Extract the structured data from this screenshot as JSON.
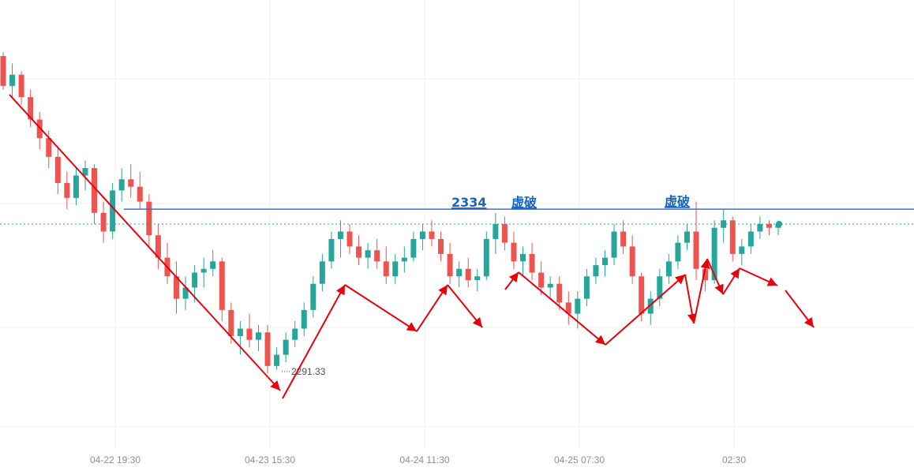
{
  "chart_data": {
    "type": "candlestick",
    "x_tick_labels": [
      "04-22 19:30",
      "04-23 15:30",
      "04-24 11:30",
      "04-25 07:30",
      "02:30"
    ],
    "y_range": [
      2270,
      2390
    ],
    "grid": true,
    "resistance_level": {
      "value": 2334,
      "label": "2334",
      "color": "#3b6fe0"
    },
    "current_price_line": {
      "value": 2330
    },
    "low_annotation": {
      "value": 2291.33,
      "label": "2291.33"
    },
    "breakout_labels": [
      "虚破",
      "虚破"
    ],
    "colors": {
      "up": "#26a69a",
      "down": "#ef5350",
      "arrows": "#e8000b",
      "text_annotation": "#1565c0",
      "current_line": "#26a69a",
      "current_dot": "#26a69a"
    },
    "candles": [
      [
        2375,
        2376,
        2366,
        2367
      ],
      [
        2367,
        2373,
        2364,
        2370
      ],
      [
        2370,
        2371,
        2362,
        2364
      ],
      [
        2364,
        2366,
        2356,
        2358
      ],
      [
        2358,
        2360,
        2350,
        2353
      ],
      [
        2353,
        2355,
        2345,
        2348
      ],
      [
        2348,
        2351,
        2338,
        2341
      ],
      [
        2341,
        2344,
        2334,
        2337
      ],
      [
        2337,
        2345,
        2335,
        2343
      ],
      [
        2343,
        2347,
        2339,
        2345
      ],
      [
        2345,
        2346,
        2330,
        2333
      ],
      [
        2333,
        2336,
        2325,
        2328
      ],
      [
        2328,
        2341,
        2326,
        2339
      ],
      [
        2339,
        2345,
        2336,
        2342
      ],
      [
        2342,
        2346,
        2337,
        2340
      ],
      [
        2340,
        2344,
        2334,
        2336
      ],
      [
        2336,
        2338,
        2324,
        2327
      ],
      [
        2327,
        2330,
        2318,
        2321
      ],
      [
        2321,
        2325,
        2314,
        2316
      ],
      [
        2316,
        2320,
        2306,
        2310
      ],
      [
        2310,
        2316,
        2307,
        2313
      ],
      [
        2313,
        2319,
        2309,
        2317
      ],
      [
        2317,
        2321,
        2313,
        2318
      ],
      [
        2318,
        2323,
        2316,
        2320
      ],
      [
        2320,
        2321,
        2304,
        2307
      ],
      [
        2307,
        2309,
        2298,
        2300
      ],
      [
        2300,
        2304,
        2295,
        2302
      ],
      [
        2302,
        2306,
        2297,
        2299
      ],
      [
        2299,
        2303,
        2296,
        2301
      ],
      [
        2301,
        2303,
        2290,
        2292
      ],
      [
        2292,
        2297,
        2291,
        2295
      ],
      [
        2295,
        2301,
        2293,
        2299
      ],
      [
        2299,
        2304,
        2297,
        2302
      ],
      [
        2302,
        2309,
        2300,
        2307
      ],
      [
        2307,
        2316,
        2305,
        2314
      ],
      [
        2314,
        2322,
        2312,
        2320
      ],
      [
        2320,
        2328,
        2318,
        2326
      ],
      [
        2326,
        2331,
        2321,
        2328
      ],
      [
        2328,
        2330,
        2322,
        2324
      ],
      [
        2324,
        2327,
        2319,
        2321
      ],
      [
        2321,
        2325,
        2318,
        2323
      ],
      [
        2323,
        2326,
        2318,
        2320
      ],
      [
        2320,
        2324,
        2314,
        2316
      ],
      [
        2316,
        2322,
        2314,
        2320
      ],
      [
        2320,
        2324,
        2317,
        2321
      ],
      [
        2321,
        2328,
        2320,
        2326
      ],
      [
        2326,
        2330,
        2323,
        2328
      ],
      [
        2328,
        2331,
        2324,
        2326
      ],
      [
        2326,
        2328,
        2320,
        2322
      ],
      [
        2322,
        2325,
        2314,
        2316
      ],
      [
        2316,
        2320,
        2313,
        2318
      ],
      [
        2318,
        2321,
        2313,
        2315
      ],
      [
        2315,
        2318,
        2312,
        2316
      ],
      [
        2316,
        2328,
        2315,
        2326
      ],
      [
        2326,
        2333,
        2322,
        2330
      ],
      [
        2330,
        2332,
        2323,
        2325
      ],
      [
        2325,
        2328,
        2318,
        2320
      ],
      [
        2320,
        2324,
        2316,
        2322
      ],
      [
        2322,
        2325,
        2315,
        2317
      ],
      [
        2317,
        2320,
        2311,
        2313
      ],
      [
        2313,
        2316,
        2310,
        2314
      ],
      [
        2314,
        2316,
        2307,
        2309
      ],
      [
        2309,
        2312,
        2303,
        2306
      ],
      [
        2306,
        2312,
        2302,
        2310
      ],
      [
        2310,
        2318,
        2308,
        2316
      ],
      [
        2316,
        2321,
        2314,
        2319
      ],
      [
        2319,
        2323,
        2316,
        2321
      ],
      [
        2321,
        2330,
        2319,
        2328
      ],
      [
        2328,
        2331,
        2322,
        2324
      ],
      [
        2324,
        2327,
        2314,
        2316
      ],
      [
        2316,
        2317,
        2304,
        2306
      ],
      [
        2306,
        2312,
        2303,
        2310
      ],
      [
        2310,
        2318,
        2308,
        2316
      ],
      [
        2316,
        2322,
        2314,
        2320
      ],
      [
        2320,
        2327,
        2318,
        2325
      ],
      [
        2325,
        2330,
        2323,
        2328
      ],
      [
        2328,
        2336,
        2315,
        2318
      ],
      [
        2318,
        2320,
        2312,
        2315
      ],
      [
        2315,
        2331,
        2314,
        2329
      ],
      [
        2329,
        2334,
        2325,
        2331
      ],
      [
        2331,
        2332,
        2320,
        2322
      ],
      [
        2322,
        2326,
        2319,
        2324
      ],
      [
        2324,
        2330,
        2322,
        2328
      ],
      [
        2328,
        2332,
        2326,
        2330
      ],
      [
        2330,
        2331,
        2327,
        2329
      ],
      [
        2329,
        2331,
        2327,
        2330
      ]
    ]
  }
}
